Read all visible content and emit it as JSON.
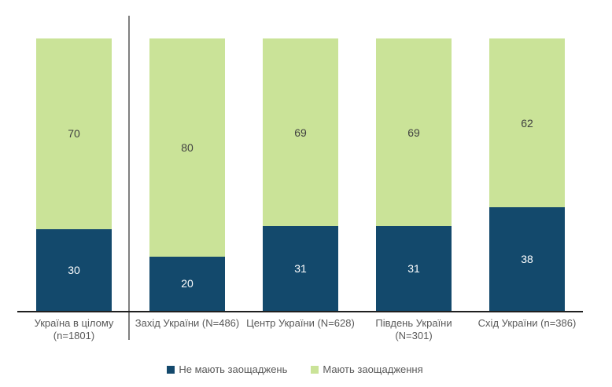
{
  "chart_data": {
    "type": "bar",
    "stacking": "percent",
    "orientation": "vertical",
    "title": "",
    "xlabel": "",
    "ylabel": "",
    "ylim": [
      0,
      100
    ],
    "grid": false,
    "legend_position": "bottom",
    "separator_after_category_index": 0,
    "categories": [
      "Україна в цілому\n(n=1801)",
      "Захід України (N=486)",
      "Центр України (N=628)",
      "Південь України\n(N=301)",
      "Схід України (n=386)"
    ],
    "series": [
      {
        "name": "Не мають заощаджень",
        "color": "#13496c",
        "label_color": "#ffffff",
        "values": [
          30,
          20,
          31,
          31,
          38
        ]
      },
      {
        "name": "Мають заощадження",
        "color": "#cae398",
        "label_color": "#404040",
        "values": [
          70,
          80,
          69,
          69,
          62
        ]
      }
    ]
  },
  "colors": {
    "background": "#ffffff",
    "axis_line": "#1f1f1f",
    "divider_line": "#808080",
    "category_text": "#595959",
    "legend_text": "#595959"
  }
}
